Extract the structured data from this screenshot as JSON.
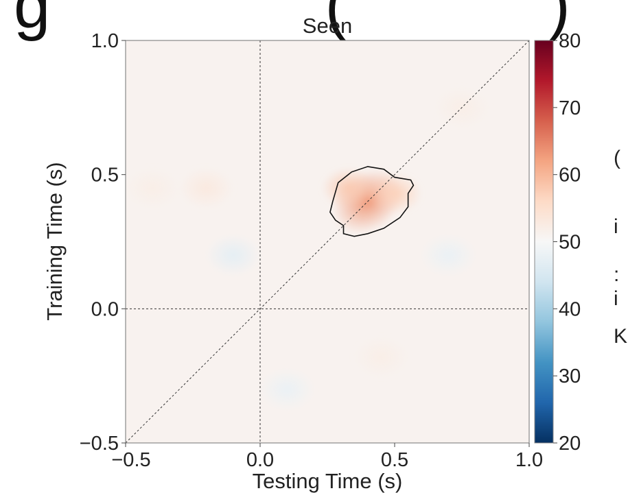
{
  "header_fragment": "g               (           )",
  "side_fragments": [
    "(",
    "i",
    ":",
    "i",
    "K"
  ],
  "chart_data": {
    "type": "heatmap",
    "title": "Seen",
    "xlabel": "Testing Time (s)",
    "ylabel": "Training Time (s)",
    "xlim": [
      -0.5,
      1.0
    ],
    "ylim": [
      -0.5,
      1.0
    ],
    "x_ticks": [
      -0.5,
      0.0,
      0.5,
      1.0
    ],
    "y_ticks": [
      -0.5,
      0.0,
      0.5,
      1.0
    ],
    "x_tick_labels": [
      "−0.5",
      "0.0",
      "0.5",
      "1.0"
    ],
    "y_tick_labels": [
      "−0.5",
      "0.0",
      "0.5",
      "1.0"
    ],
    "colorbar": {
      "range": [
        20,
        80
      ],
      "ticks": [
        20,
        30,
        40,
        50,
        60,
        70,
        80
      ],
      "tick_labels": [
        "20",
        "30",
        "40",
        "50",
        "60",
        "70",
        "80"
      ],
      "colormap": "RdBu_r",
      "stops": [
        "#053061",
        "#2166ac",
        "#4393c3",
        "#92c5de",
        "#d1e5f0",
        "#f7f7f7",
        "#fddbc7",
        "#f4a582",
        "#d6604d",
        "#b2182b",
        "#67001f"
      ]
    },
    "background_value": 51,
    "peak": {
      "x": 0.4,
      "y": 0.4,
      "value": 63
    },
    "blobs": [
      {
        "x": 0.4,
        "y": 0.4,
        "value": 63
      },
      {
        "x": 0.33,
        "y": 0.45,
        "value": 58
      },
      {
        "x": 0.5,
        "y": 0.43,
        "value": 57
      },
      {
        "x": -0.2,
        "y": 0.45,
        "value": 53
      },
      {
        "x": -0.4,
        "y": 0.45,
        "value": 52
      },
      {
        "x": 0.75,
        "y": 0.75,
        "value": 52
      },
      {
        "x": 0.45,
        "y": -0.18,
        "value": 52
      },
      {
        "x": -0.1,
        "y": 0.2,
        "value": 47
      },
      {
        "x": 0.7,
        "y": 0.2,
        "value": 48
      },
      {
        "x": 0.1,
        "y": -0.3,
        "value": 48
      }
    ],
    "significance_contour": [
      [
        0.27,
        0.4
      ],
      [
        0.29,
        0.47
      ],
      [
        0.34,
        0.51
      ],
      [
        0.4,
        0.53
      ],
      [
        0.46,
        0.52
      ],
      [
        0.5,
        0.49
      ],
      [
        0.56,
        0.48
      ],
      [
        0.57,
        0.46
      ],
      [
        0.55,
        0.43
      ],
      [
        0.55,
        0.38
      ],
      [
        0.52,
        0.34
      ],
      [
        0.46,
        0.3
      ],
      [
        0.4,
        0.28
      ],
      [
        0.35,
        0.27
      ],
      [
        0.31,
        0.28
      ],
      [
        0.31,
        0.31
      ],
      [
        0.28,
        0.33
      ],
      [
        0.26,
        0.36
      ]
    ],
    "diagonal": true,
    "reference_lines": {
      "x": 0.0,
      "y": 0.0
    }
  }
}
